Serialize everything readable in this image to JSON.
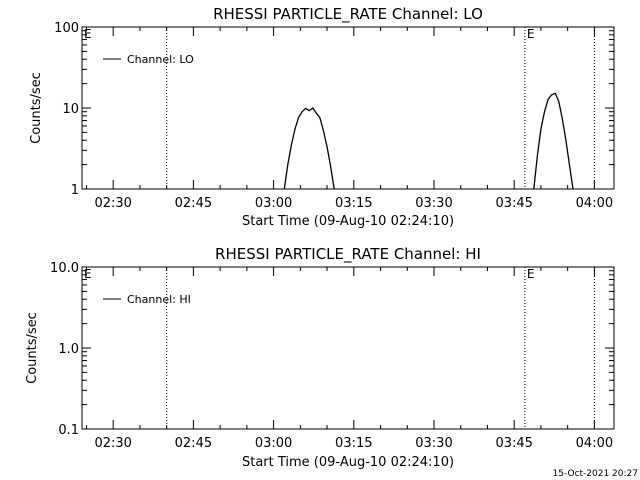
{
  "footer": {
    "timestamp": "15-Oct-2021 20:27"
  },
  "chart_data": [
    {
      "type": "line",
      "title": "RHESSI PARTICLE_RATE Channel: LO",
      "xlabel": "Start Time (09-Aug-10 02:24:10)",
      "ylabel": "Counts/sec",
      "yscale": "log",
      "ylim": [
        1,
        100
      ],
      "xlim": [
        "02:24:10",
        "04:03:40"
      ],
      "x_ticks": [
        "02:30",
        "02:45",
        "03:00",
        "03:15",
        "03:30",
        "03:45",
        "04:00"
      ],
      "y_ticks": [
        "1",
        "10",
        "100"
      ],
      "legend": {
        "entry": "Channel: LO",
        "placement": "top-left"
      },
      "markers": [
        {
          "time": "02:40:00",
          "label": ""
        },
        {
          "time": "03:47:00",
          "label": "E"
        },
        {
          "time": "04:00:00",
          "label": ""
        }
      ],
      "left_marker_label": "E",
      "series": [
        {
          "name": "Channel: LO",
          "segments": [
            {
              "x": [
                "03:02:00",
                "03:02:40",
                "03:03:20",
                "03:04:00",
                "03:04:40",
                "03:05:20",
                "03:06:00",
                "03:06:40",
                "03:07:20",
                "03:08:00",
                "03:08:40",
                "03:09:20",
                "03:10:00",
                "03:10:40",
                "03:11:20"
              ],
              "y": [
                1.0,
                2.0,
                3.5,
                5.5,
                7.6,
                9.0,
                9.9,
                9.3,
                10.0,
                8.6,
                7.6,
                5.2,
                3.3,
                1.9,
                1.0
              ]
            },
            {
              "x": [
                "03:48:40",
                "03:49:20",
                "03:50:00",
                "03:50:40",
                "03:51:20",
                "03:52:00",
                "03:52:40",
                "03:53:20",
                "03:54:00",
                "03:54:40",
                "03:55:20",
                "03:56:00"
              ],
              "y": [
                1.0,
                2.6,
                5.5,
                9.0,
                12.8,
                14.5,
                15.2,
                12.0,
                7.4,
                4.0,
                2.0,
                1.0
              ]
            }
          ]
        }
      ]
    },
    {
      "type": "line",
      "title": "RHESSI PARTICLE_RATE Channel: HI",
      "xlabel": "Start Time (09-Aug-10 02:24:10)",
      "ylabel": "Counts/sec",
      "yscale": "log",
      "ylim": [
        0.1,
        10
      ],
      "xlim": [
        "02:24:10",
        "04:03:40"
      ],
      "x_ticks": [
        "02:30",
        "02:45",
        "03:00",
        "03:15",
        "03:30",
        "03:45",
        "04:00"
      ],
      "y_ticks": [
        "0.1",
        "1.0",
        "10.0"
      ],
      "legend": {
        "entry": "Channel: HI",
        "placement": "top-left"
      },
      "markers": [
        {
          "time": "02:40:00",
          "label": ""
        },
        {
          "time": "03:47:00",
          "label": "E"
        },
        {
          "time": "04:00:00",
          "label": ""
        }
      ],
      "left_marker_label": "E",
      "series": [
        {
          "name": "Channel: HI",
          "segments": []
        }
      ]
    }
  ]
}
